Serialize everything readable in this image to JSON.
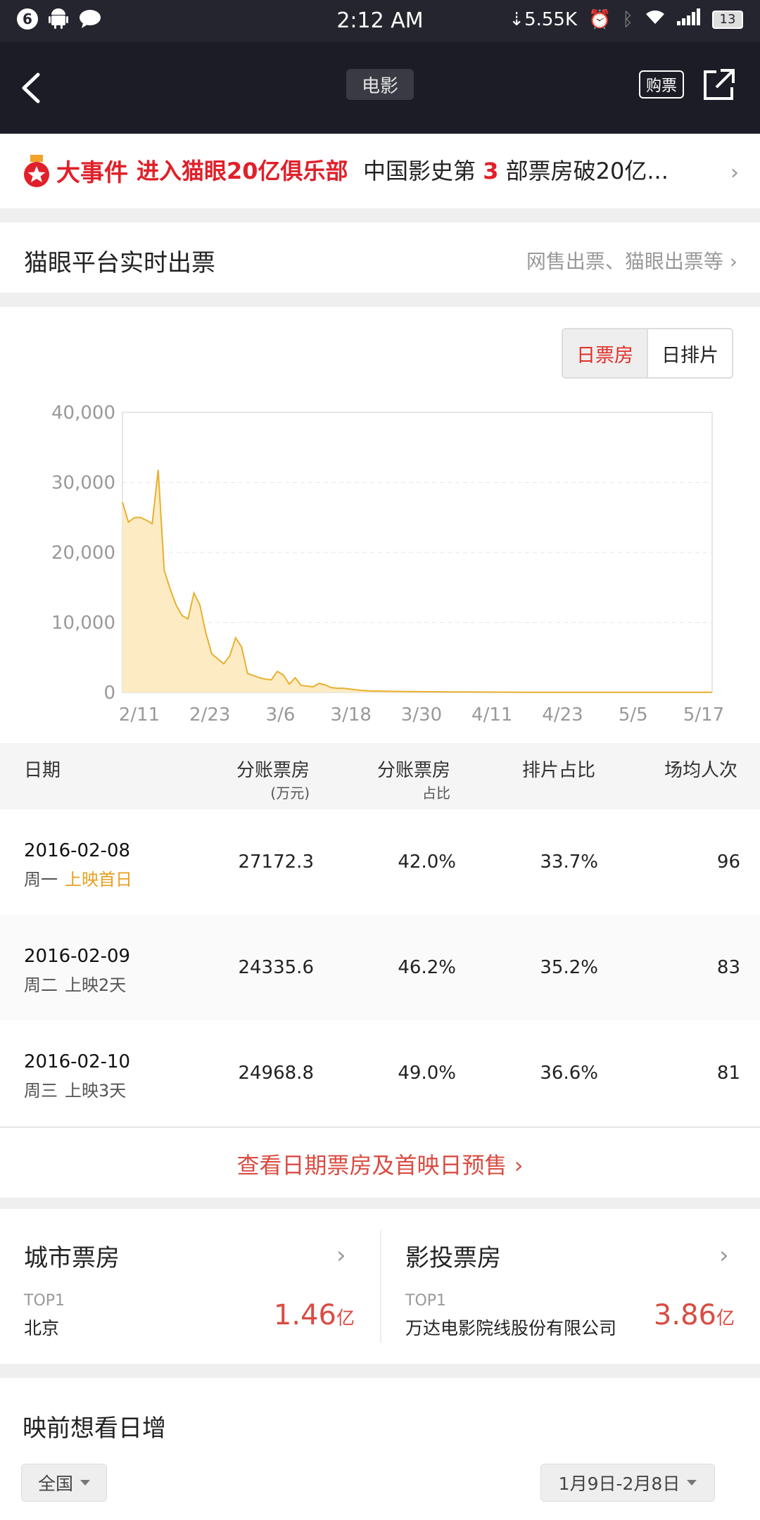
{
  "status_bar": {
    "notif_count": "6",
    "time": "2:12 AM",
    "speed": "5.55K",
    "battery": "13"
  },
  "header": {
    "title": "电影",
    "buy_label": "购票"
  },
  "event": {
    "tag": "大事件",
    "highlight": "进入猫眼20亿俱乐部",
    "text_pre": "中国影史第",
    "text_num": "3",
    "text_post": "部票房破20亿..."
  },
  "realtime": {
    "label": "猫眼平台实时出票",
    "sub": "网售出票、猫眼出票等 ›"
  },
  "toggle": {
    "options": [
      "日票房",
      "日排片"
    ],
    "selected": "日票房"
  },
  "chart_data": {
    "type": "area",
    "x_tick_labels": [
      "2/11",
      "2/23",
      "3/6",
      "3/18",
      "3/30",
      "4/11",
      "4/23",
      "5/5",
      "5/17"
    ],
    "y_tick_labels": [
      "0",
      "10,000",
      "20,000",
      "30,000",
      "40,000"
    ],
    "ylim": [
      0,
      40000
    ],
    "series": [
      {
        "values": [
          27172,
          24336,
          24969,
          25000,
          24600,
          24100,
          31800,
          17500,
          14800,
          12500,
          11000,
          10500,
          14200,
          12500,
          8500,
          5500,
          4800,
          4100,
          5200,
          7800,
          6500,
          2700,
          2400,
          2100,
          1900,
          1800,
          3000,
          2500,
          1200,
          2100,
          1000,
          900,
          800,
          1300,
          1100,
          700,
          600,
          600,
          500,
          400,
          300,
          250,
          200,
          200,
          180,
          160,
          150,
          140,
          130,
          120,
          110,
          100,
          100,
          90,
          90,
          80,
          80,
          70,
          70,
          60,
          60,
          50,
          50,
          50,
          40,
          40,
          40,
          30,
          30,
          30,
          30,
          20,
          20,
          20,
          20,
          20,
          20,
          20,
          20,
          20,
          20,
          20,
          20,
          20,
          20,
          20,
          20,
          20,
          20,
          20,
          20,
          20,
          20,
          20,
          20,
          20,
          20,
          20,
          20,
          20
        ]
      }
    ],
    "grid": true,
    "color": "#e8b030",
    "fill": "#fdebc4"
  },
  "table": {
    "headers": {
      "date": "日期",
      "revenue": "分账票房",
      "revenue_unit": "(万元)",
      "share": "分账票房",
      "share_sub": "占比",
      "screening": "排片占比",
      "attendance": "场均人次"
    },
    "rows": [
      {
        "date": "2016-02-08",
        "weekday": "周一",
        "note": "上映首日",
        "revenue": "27172.3",
        "share": "42.0%",
        "screening": "33.7%",
        "attendance": "96"
      },
      {
        "date": "2016-02-09",
        "weekday": "周二",
        "note": "上映2天",
        "revenue": "24335.6",
        "share": "46.2%",
        "screening": "35.2%",
        "attendance": "83"
      },
      {
        "date": "2016-02-10",
        "weekday": "周三",
        "note": "上映3天",
        "revenue": "24968.8",
        "share": "49.0%",
        "screening": "36.6%",
        "attendance": "81"
      }
    ],
    "more_link": "查看日期票房及首映日预售"
  },
  "cards": {
    "city": {
      "title": "城市票房",
      "top_label": "TOP1",
      "name": "北京",
      "value": "1.46",
      "unit": "亿"
    },
    "investor": {
      "title": "影投票房",
      "top_label": "TOP1",
      "name": "万达电影院线股份有限公司",
      "value": "3.86",
      "unit": "亿"
    }
  },
  "want": {
    "title": "映前想看日增",
    "region": "全国",
    "date_range": "1月9日-2月8日"
  }
}
